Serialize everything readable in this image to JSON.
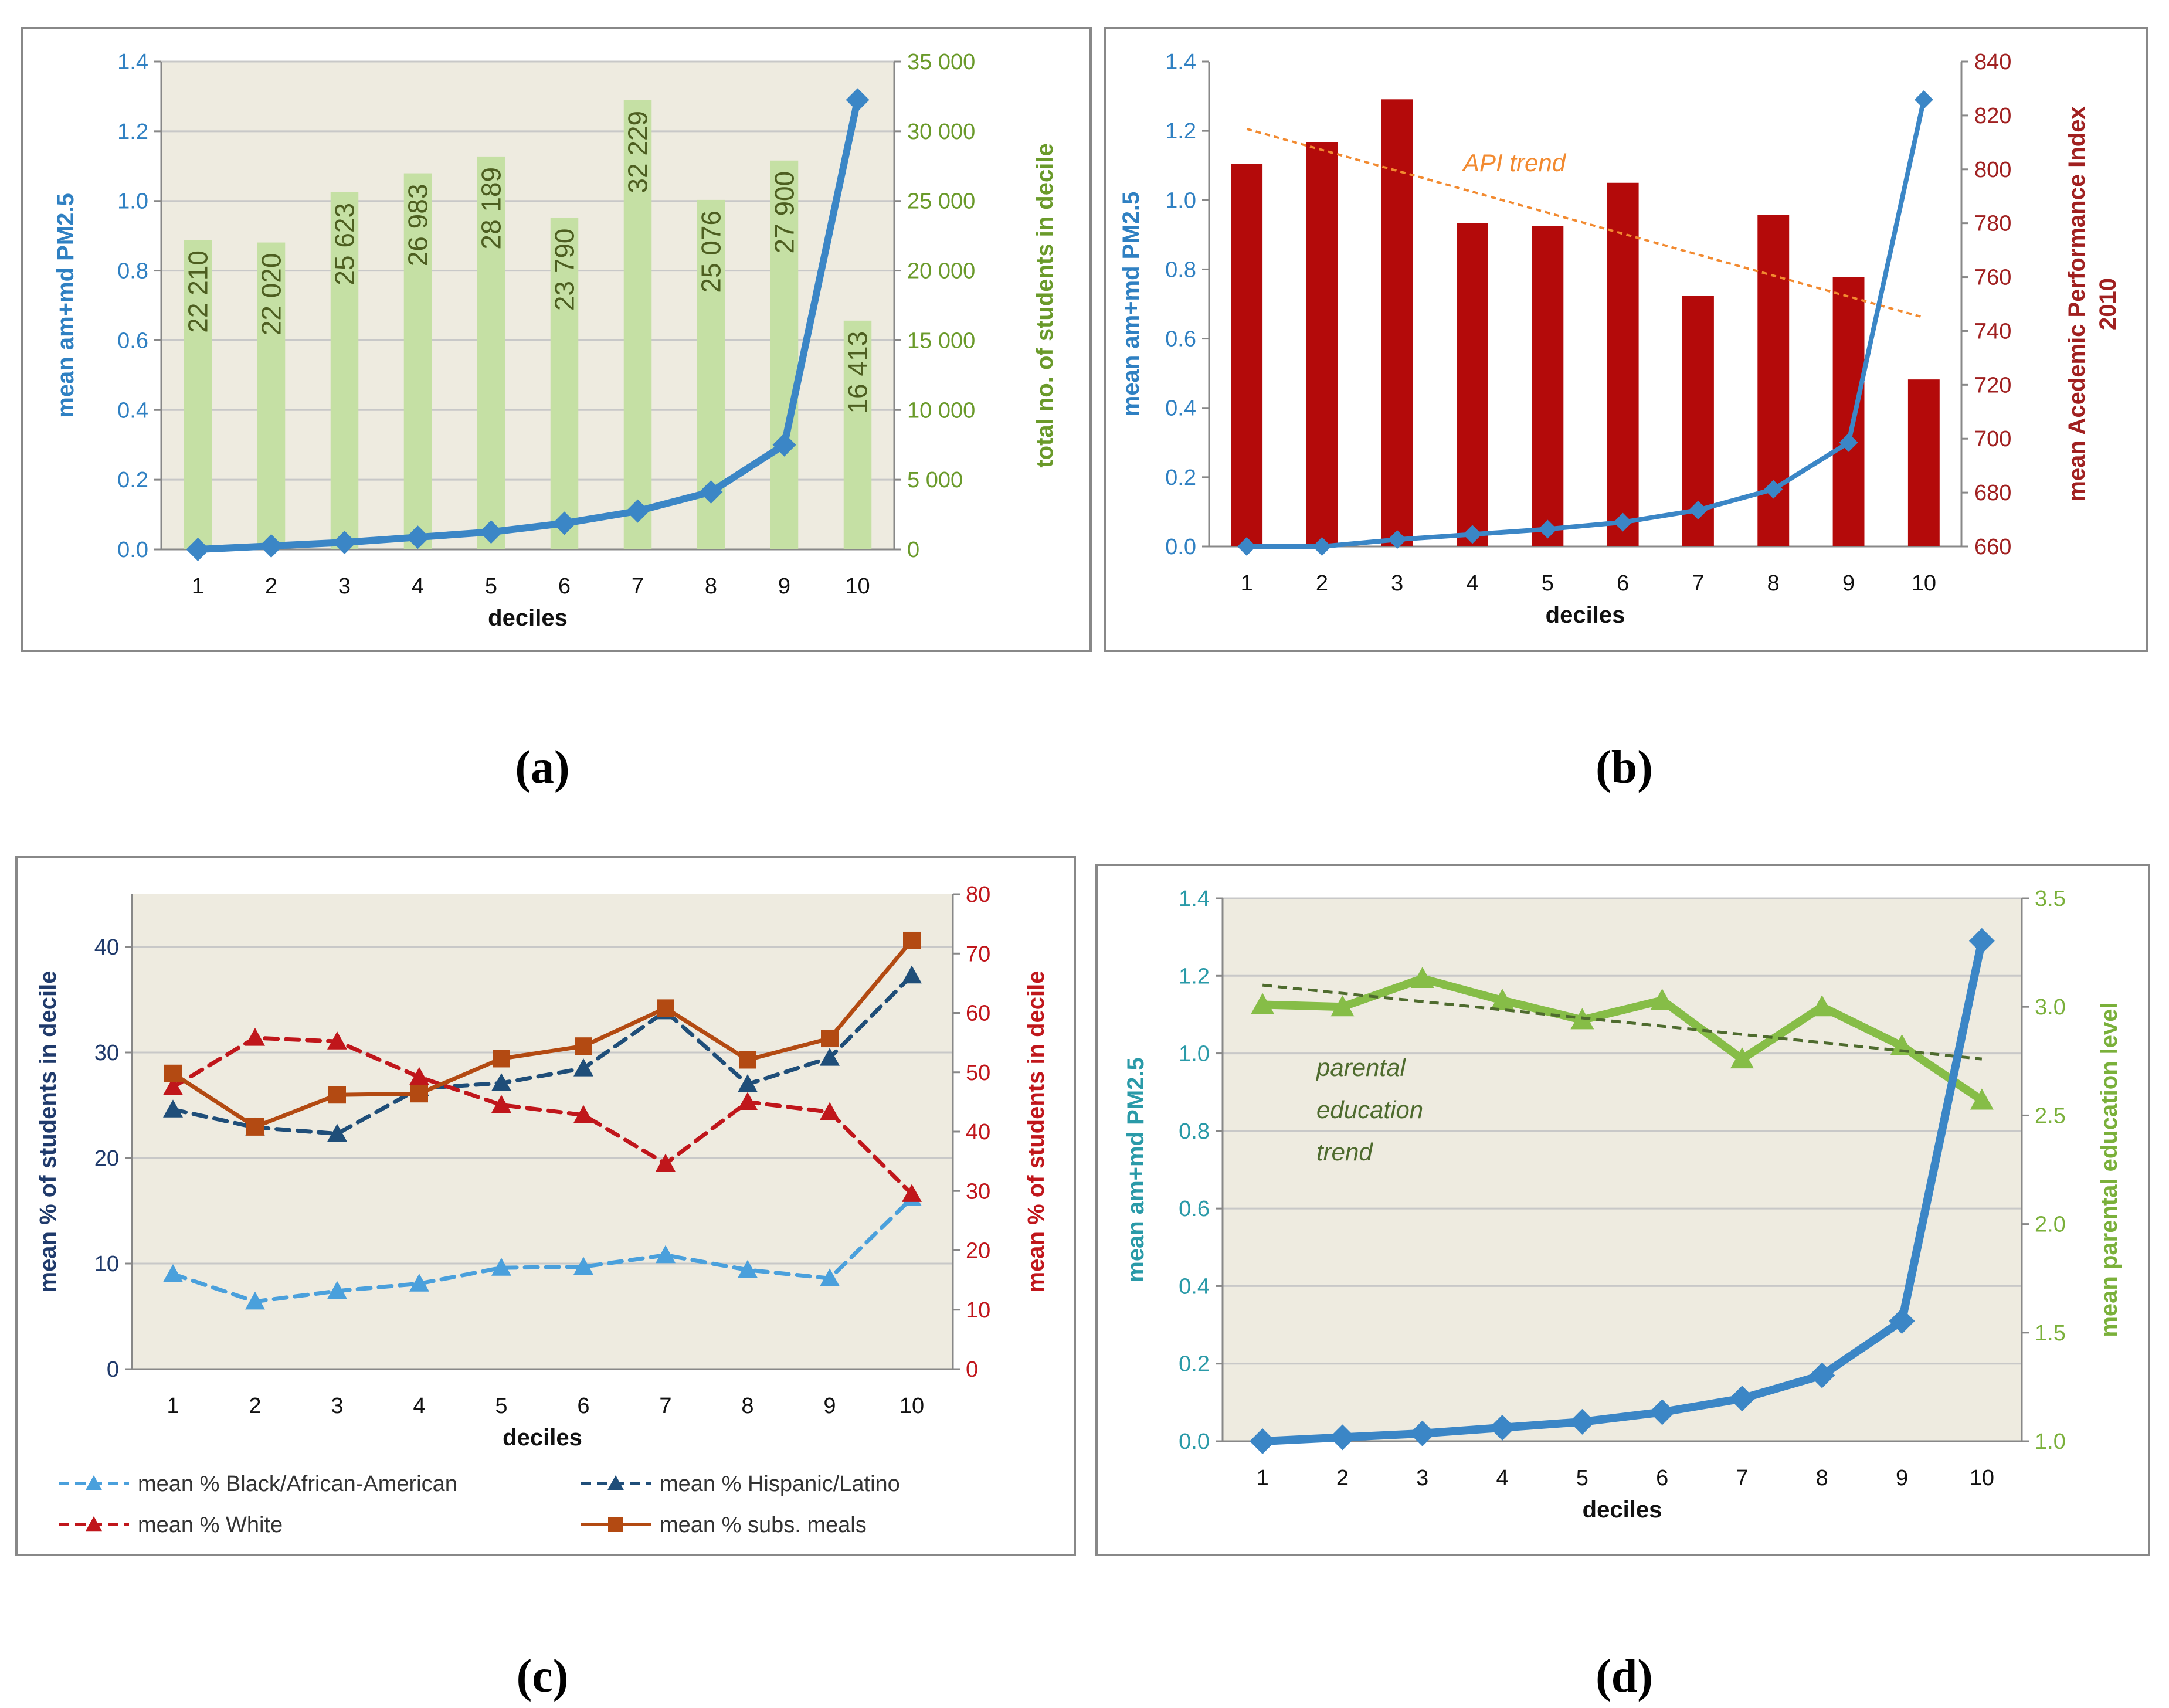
{
  "colors": {
    "pm_line": "#3b86c6",
    "student_bars": "#c5e0a4",
    "api_bars": "#b40a0a",
    "api_trend": "#f28a30",
    "black_line": "#4aa0dc",
    "hispanic_line": "#1f4e79",
    "white_line": "#c0161b",
    "meals_line": "#b34a12",
    "parent_line": "#86bd47",
    "parent_trend": "#4e6b2e",
    "plot_bg": "#eeebe0",
    "grid": "#c8c8c8",
    "axis_text_a_left": "#2f80c2",
    "axis_text_a_right": "#6a9a2a",
    "axis_text_b_right": "#a02020",
    "axis_text_c_left": "#1f3a6b",
    "axis_text_c_right": "#c0161b",
    "axis_text_d_left": "#2a9aa8",
    "axis_text_d_right": "#7ab03a"
  },
  "chart_data": [
    {
      "panel": "(a)",
      "type": "bar",
      "categories": [
        "1",
        "2",
        "3",
        "4",
        "5",
        "6",
        "7",
        "8",
        "9",
        "10"
      ],
      "xlabel": "deciles",
      "ylabel_left": "mean am+md PM2.5",
      "ylabel_right": "total no. of students in decile",
      "ylim_left": [
        0,
        1.4
      ],
      "yticks_left": [
        "0.0",
        "0.2",
        "0.4",
        "0.6",
        "0.8",
        "1.0",
        "1.2",
        "1.4"
      ],
      "ylim_right": [
        0,
        35000
      ],
      "yticks_right": [
        "0",
        "5 000",
        "10 000",
        "15 000",
        "20 000",
        "25 000",
        "30 000",
        "35 000"
      ],
      "grid": true,
      "series": [
        {
          "kind": "bar",
          "axis": "right",
          "values": [
            22210,
            22020,
            25623,
            26983,
            28189,
            23790,
            32229,
            25076,
            27900,
            16413
          ],
          "data_labels": [
            "22 210",
            "22 020",
            "25 623",
            "26 983",
            "28 189",
            "23 790",
            "32 229",
            "25 076",
            "27 900",
            "16 413"
          ]
        },
        {
          "kind": "line",
          "axis": "left",
          "values": [
            0.0,
            0.01,
            0.02,
            0.035,
            0.05,
            0.075,
            0.11,
            0.165,
            0.3,
            1.29
          ]
        }
      ]
    },
    {
      "panel": "(b)",
      "type": "bar",
      "categories": [
        "1",
        "2",
        "3",
        "4",
        "5",
        "6",
        "7",
        "8",
        "9",
        "10"
      ],
      "xlabel": "deciles",
      "ylabel_left": "mean am+md PM2.5",
      "ylabel_right_lines": [
        "mean Acedemic Performance Index",
        "2010"
      ],
      "ylim_left": [
        0,
        1.4
      ],
      "yticks_left": [
        "0.0",
        "0.2",
        "0.4",
        "0.6",
        "0.8",
        "1.0",
        "1.2",
        "1.4"
      ],
      "ylim_right": [
        660,
        840
      ],
      "yticks_right": [
        "660",
        "680",
        "700",
        "720",
        "740",
        "760",
        "780",
        "800",
        "820",
        "840"
      ],
      "grid": false,
      "series": [
        {
          "kind": "bar",
          "axis": "right",
          "values": [
            802,
            810,
            826,
            780,
            779,
            795,
            753,
            783,
            760,
            722
          ]
        },
        {
          "kind": "line",
          "axis": "left",
          "values": [
            0.0,
            0.0,
            0.02,
            0.035,
            0.05,
            0.07,
            0.105,
            0.165,
            0.3,
            1.29
          ]
        },
        {
          "kind": "trend",
          "axis": "right",
          "from": [
            1,
            815
          ],
          "to": [
            10,
            745
          ]
        }
      ],
      "annotations": [
        "API trend"
      ]
    },
    {
      "panel": "(c)",
      "type": "line",
      "categories": [
        "1",
        "2",
        "3",
        "4",
        "5",
        "6",
        "7",
        "8",
        "9",
        "10"
      ],
      "xlabel": "deciles",
      "ylabel_left": "mean % of students in decile",
      "ylabel_right": "mean % of students in decile",
      "ylim_left": [
        0,
        45
      ],
      "yticks_left": [
        "0",
        "10",
        "20",
        "30",
        "40"
      ],
      "ylim_right": [
        0,
        80
      ],
      "yticks_right": [
        "0",
        "10",
        "20",
        "30",
        "40",
        "50",
        "60",
        "70",
        "80"
      ],
      "grid": true,
      "legend_placement": "bottom",
      "series": [
        {
          "name": "mean % Black/African-American",
          "axis": "left",
          "values": [
            9,
            6.4,
            7.4,
            8.1,
            9.6,
            9.7,
            10.8,
            9.4,
            8.6,
            16.2
          ]
        },
        {
          "name": "mean % Hispanic/Latino",
          "axis": "left",
          "values": [
            24.6,
            22.9,
            22.3,
            26.6,
            27.1,
            28.5,
            33.9,
            27,
            29.5,
            37.3
          ]
        },
        {
          "name": "mean % White",
          "axis": "right",
          "values": [
            47.5,
            55.8,
            55.2,
            49.2,
            44.5,
            42.8,
            34.6,
            45,
            43.3,
            29.5
          ]
        },
        {
          "name": "mean % subs. meals",
          "axis": "right",
          "values": [
            49.8,
            40.8,
            46.2,
            46.4,
            52.3,
            54.4,
            60.8,
            52.1,
            55.7,
            72.2
          ]
        }
      ]
    },
    {
      "panel": "(d)",
      "type": "line",
      "categories": [
        "1",
        "2",
        "3",
        "4",
        "5",
        "6",
        "7",
        "8",
        "9",
        "10"
      ],
      "xlabel": "deciles",
      "ylabel_left": "mean am+md PM2.5",
      "ylabel_right": "mean parental education level",
      "ylim_left": [
        0,
        1.4
      ],
      "yticks_left": [
        "0.0",
        "0.2",
        "0.4",
        "0.6",
        "0.8",
        "1.0",
        "1.2",
        "1.4"
      ],
      "ylim_right": [
        1.0,
        3.5
      ],
      "yticks_right": [
        "1.0",
        "1.5",
        "2.0",
        "2.5",
        "3.0",
        "3.5"
      ],
      "grid": true,
      "series": [
        {
          "kind": "line",
          "axis": "left",
          "values": [
            0.0,
            0.01,
            0.02,
            0.035,
            0.05,
            0.075,
            0.11,
            0.17,
            0.31,
            1.29
          ]
        },
        {
          "kind": "line",
          "axis": "right",
          "values": [
            3.01,
            3.0,
            3.13,
            3.03,
            2.94,
            3.03,
            2.76,
            3.0,
            2.82,
            2.57
          ]
        },
        {
          "kind": "trend",
          "axis": "right",
          "from": [
            1,
            3.1
          ],
          "to": [
            10,
            2.76
          ]
        }
      ],
      "annotations": [
        "parental",
        "education",
        "trend"
      ]
    }
  ]
}
